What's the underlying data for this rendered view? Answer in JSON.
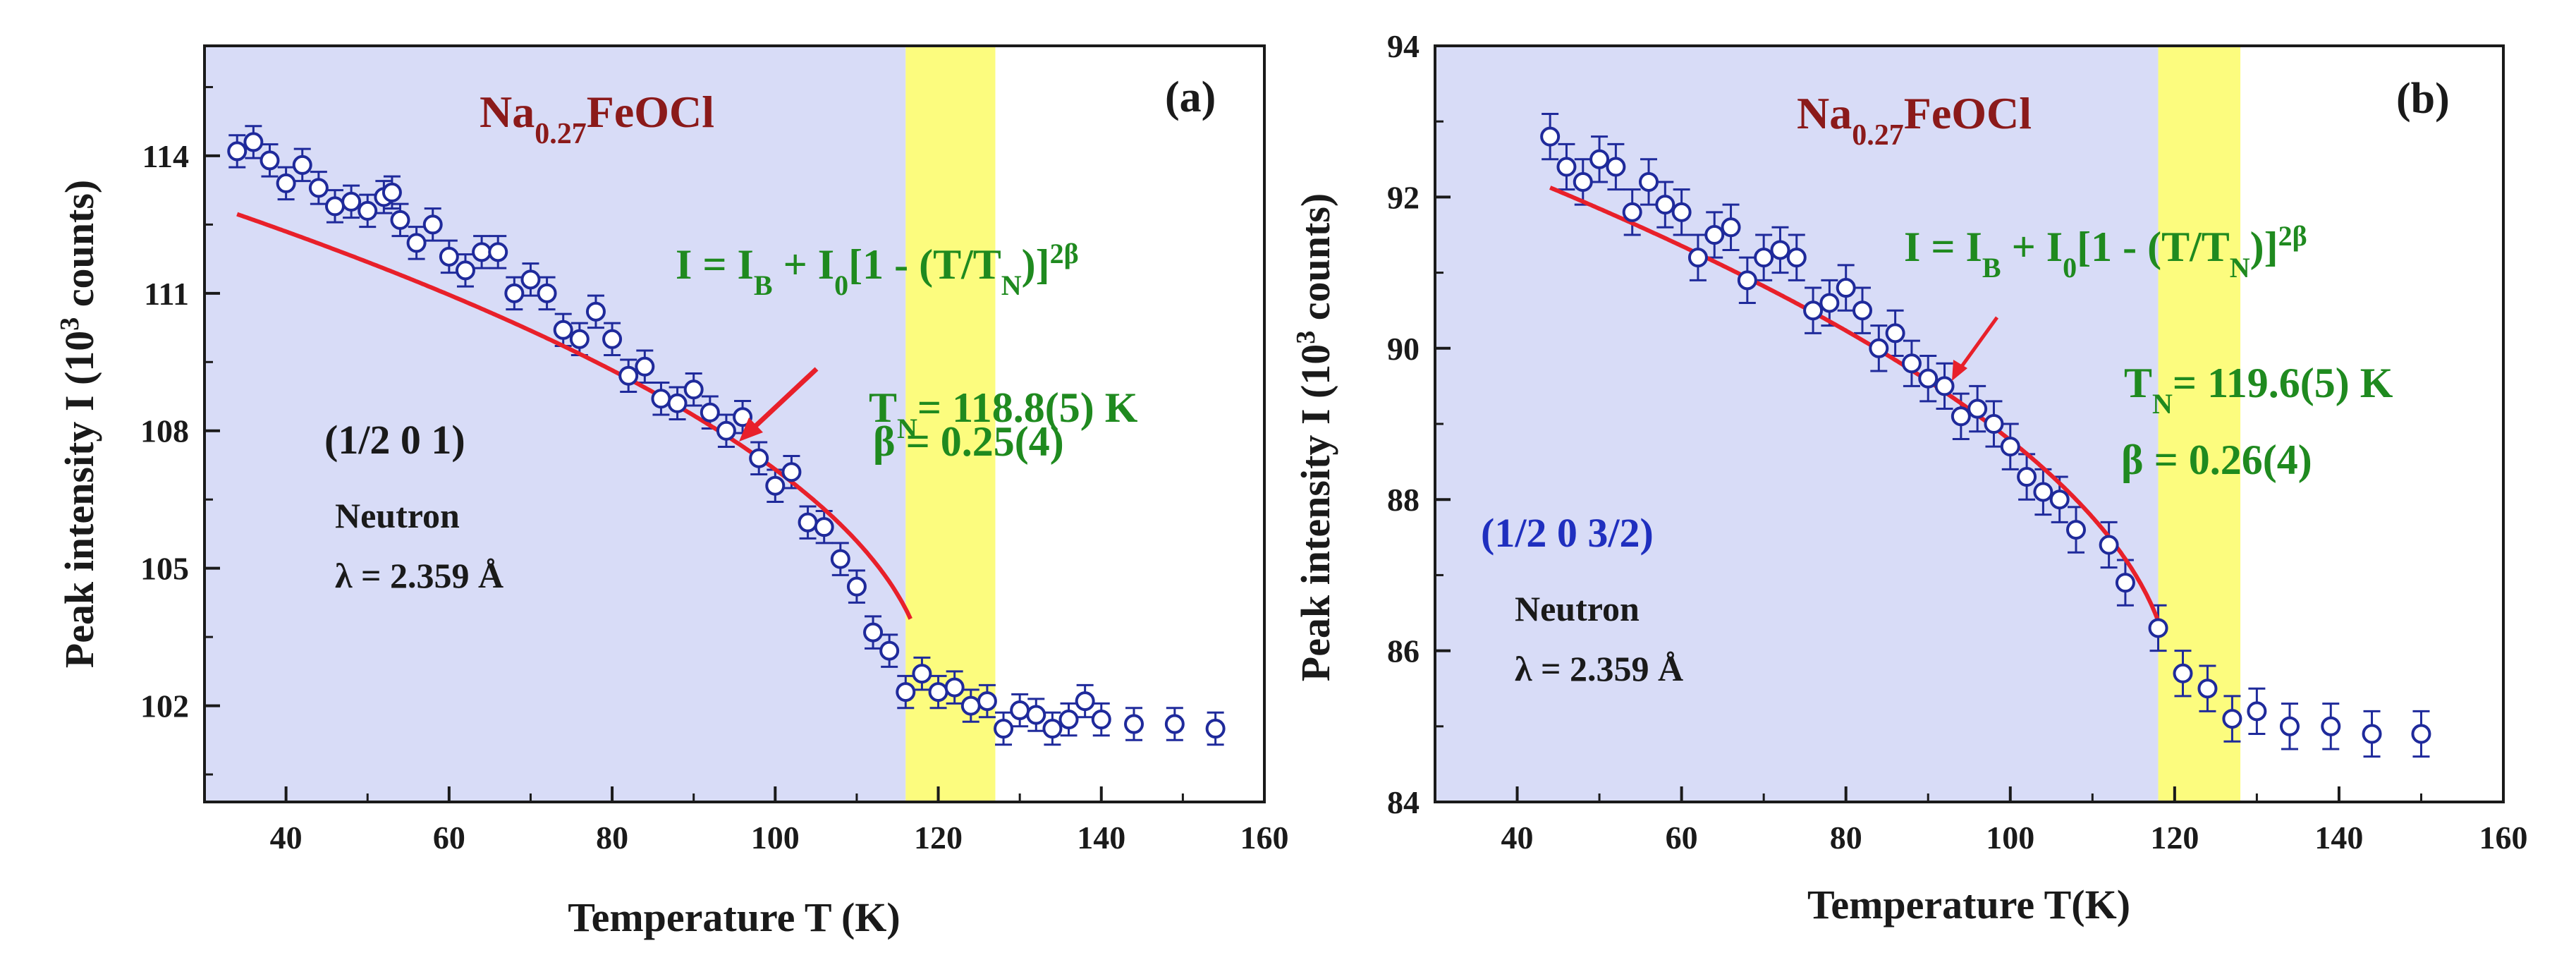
{
  "chart_data": [
    {
      "type": "scatter",
      "panel_label": "(a)",
      "compound": "Na0.27FeOCl",
      "compound_parts": {
        "base": "Na",
        "sub": "0.27",
        "rest": "FeOCl"
      },
      "xlabel": "Temperature T (K)",
      "ylabel_parts": {
        "pre": "Peak intensity I (10",
        "sup": "3",
        "post": " counts)"
      },
      "xlim": [
        30,
        160
      ],
      "ylim": [
        99.9,
        116.4
      ],
      "xticks": [
        40,
        60,
        80,
        100,
        120,
        140,
        160
      ],
      "yticks": [
        102,
        105,
        108,
        111,
        114
      ],
      "xtick_labels": [
        "40",
        "60",
        "80",
        "100",
        "120",
        "140",
        "160"
      ],
      "ytick_labels": [
        "102",
        "105",
        "108",
        "111",
        "114"
      ],
      "shaded_region_ordered": [
        30,
        116
      ],
      "shaded_region_transition": [
        116,
        127
      ],
      "colors": {
        "ordered_region": "#d8dcf7",
        "transition_region": "#fcfc7e",
        "markers": "#1f2a9b",
        "fit": "#e8202a"
      },
      "equation": {
        "p1": "I = I",
        "s1": "B",
        "p2": " + I",
        "s2": "0",
        "p3": "[1 - (T/T",
        "s3": "N",
        "p4": ")]",
        "sup": "2β"
      },
      "fit_params": {
        "tn_pre": "T",
        "tn_sub": "N",
        "tn_value": "= 118.8(5) K",
        "beta": "β = 0.25(4)"
      },
      "hkl": "(1/2 0 1)",
      "probe": "Neutron",
      "wavelength": "λ = 2.359 Å",
      "series": [
        {
          "points": [
            [
              34,
              114.1,
              0.35
            ],
            [
              36,
              114.3,
              0.35
            ],
            [
              38,
              113.9,
              0.35
            ],
            [
              40,
              113.4,
              0.35
            ],
            [
              42,
              113.8,
              0.35
            ],
            [
              44,
              113.3,
              0.35
            ],
            [
              46,
              112.9,
              0.35
            ],
            [
              48,
              113.0,
              0.35
            ],
            [
              50,
              112.8,
              0.35
            ],
            [
              52,
              113.1,
              0.35
            ],
            [
              53,
              113.2,
              0.35
            ],
            [
              54,
              112.6,
              0.35
            ],
            [
              56,
              112.1,
              0.35
            ],
            [
              58,
              112.5,
              0.35
            ],
            [
              60,
              111.8,
              0.35
            ],
            [
              62,
              111.5,
              0.35
            ],
            [
              64,
              111.9,
              0.35
            ],
            [
              66,
              111.9,
              0.35
            ],
            [
              68,
              111.0,
              0.35
            ],
            [
              70,
              111.3,
              0.35
            ],
            [
              72,
              111.0,
              0.35
            ],
            [
              74,
              110.2,
              0.35
            ],
            [
              76,
              110.0,
              0.35
            ],
            [
              78,
              110.6,
              0.35
            ],
            [
              80,
              110.0,
              0.35
            ],
            [
              82,
              109.2,
              0.35
            ],
            [
              84,
              109.4,
              0.35
            ],
            [
              86,
              108.7,
              0.35
            ],
            [
              88,
              108.6,
              0.35
            ],
            [
              90,
              108.9,
              0.35
            ],
            [
              92,
              108.4,
              0.35
            ],
            [
              94,
              108.0,
              0.35
            ],
            [
              96,
              108.3,
              0.35
            ],
            [
              98,
              107.4,
              0.35
            ],
            [
              100,
              106.8,
              0.35
            ],
            [
              102,
              107.1,
              0.35
            ],
            [
              104,
              106.0,
              0.35
            ],
            [
              106,
              105.9,
              0.35
            ],
            [
              108,
              105.2,
              0.35
            ],
            [
              110,
              104.6,
              0.35
            ],
            [
              112,
              103.6,
              0.35
            ],
            [
              114,
              103.2,
              0.35
            ],
            [
              116,
              102.3,
              0.35
            ],
            [
              118,
              102.7,
              0.35
            ],
            [
              120,
              102.3,
              0.35
            ],
            [
              122,
              102.4,
              0.35
            ],
            [
              124,
              102.0,
              0.35
            ],
            [
              126,
              102.1,
              0.35
            ],
            [
              128,
              101.5,
              0.35
            ],
            [
              130,
              101.9,
              0.35
            ],
            [
              132,
              101.8,
              0.35
            ],
            [
              134,
              101.5,
              0.35
            ],
            [
              136,
              101.7,
              0.35
            ],
            [
              138,
              102.1,
              0.35
            ],
            [
              140,
              101.7,
              0.35
            ],
            [
              144,
              101.6,
              0.35
            ],
            [
              149,
              101.6,
              0.35
            ],
            [
              154,
              101.5,
              0.35
            ]
          ]
        }
      ],
      "fit_curve": {
        "IB": 102.2,
        "I0": 12.46,
        "TN": 118.8,
        "beta": 0.25,
        "T_start": 34,
        "T_end": 116.6
      }
    },
    {
      "type": "scatter",
      "panel_label": "(b)",
      "compound": "Na0.27FeOCl",
      "compound_parts": {
        "base": "Na",
        "sub": "0.27",
        "rest": "FeOCl"
      },
      "xlabel": "Temperature T(K)",
      "ylabel_parts": {
        "pre": "Peak intensity I (10",
        "sup": "3",
        "post": " counts)"
      },
      "xlim": [
        30,
        160
      ],
      "ylim": [
        84,
        94
      ],
      "xticks": [
        40,
        60,
        80,
        100,
        120,
        140,
        160
      ],
      "yticks": [
        84,
        86,
        88,
        90,
        92,
        94
      ],
      "xtick_labels": [
        "40",
        "60",
        "80",
        "100",
        "120",
        "140",
        "160"
      ],
      "ytick_labels": [
        "84",
        "86",
        "88",
        "90",
        "92",
        "94"
      ],
      "shaded_region_ordered": [
        30,
        118
      ],
      "shaded_region_transition": [
        118,
        128
      ],
      "colors": {
        "ordered_region": "#d8dcf7",
        "transition_region": "#fcfc7e",
        "markers": "#1f2a9b",
        "fit": "#e8202a"
      },
      "equation": {
        "p1": "I = I",
        "s1": "B",
        "p2": " + I",
        "s2": "0",
        "p3": "[1 - (T/T",
        "s3": "N",
        "p4": ")]",
        "sup": "2β"
      },
      "fit_params": {
        "tn_pre": "T",
        "tn_sub": "N",
        "tn_value": "= 119.6(5) K",
        "beta": "β = 0.26(4)"
      },
      "hkl": "(1/2 0 3/2)",
      "probe": "Neutron",
      "wavelength": "λ = 2.359 Å",
      "series": [
        {
          "points": [
            [
              44,
              92.8,
              0.3
            ],
            [
              46,
              92.4,
              0.3
            ],
            [
              48,
              92.2,
              0.3
            ],
            [
              50,
              92.5,
              0.3
            ],
            [
              52,
              92.4,
              0.3
            ],
            [
              54,
              91.8,
              0.3
            ],
            [
              56,
              92.2,
              0.3
            ],
            [
              58,
              91.9,
              0.3
            ],
            [
              60,
              91.8,
              0.3
            ],
            [
              62,
              91.2,
              0.3
            ],
            [
              64,
              91.5,
              0.3
            ],
            [
              66,
              91.6,
              0.3
            ],
            [
              68,
              90.9,
              0.3
            ],
            [
              70,
              91.2,
              0.3
            ],
            [
              72,
              91.3,
              0.3
            ],
            [
              74,
              91.2,
              0.3
            ],
            [
              76,
              90.5,
              0.3
            ],
            [
              78,
              90.6,
              0.3
            ],
            [
              80,
              90.8,
              0.3
            ],
            [
              82,
              90.5,
              0.3
            ],
            [
              84,
              90.0,
              0.3
            ],
            [
              86,
              90.2,
              0.3
            ],
            [
              88,
              89.8,
              0.3
            ],
            [
              90,
              89.6,
              0.3
            ],
            [
              92,
              89.5,
              0.3
            ],
            [
              94,
              89.1,
              0.3
            ],
            [
              96,
              89.2,
              0.3
            ],
            [
              98,
              89.0,
              0.3
            ],
            [
              100,
              88.7,
              0.3
            ],
            [
              102,
              88.3,
              0.3
            ],
            [
              104,
              88.1,
              0.3
            ],
            [
              106,
              88.0,
              0.3
            ],
            [
              108,
              87.6,
              0.3
            ],
            [
              112,
              87.4,
              0.3
            ],
            [
              114,
              86.9,
              0.3
            ],
            [
              118,
              86.3,
              0.3
            ],
            [
              121,
              85.7,
              0.3
            ],
            [
              124,
              85.5,
              0.3
            ],
            [
              127,
              85.1,
              0.3
            ],
            [
              130,
              85.2,
              0.3
            ],
            [
              134,
              85.0,
              0.3
            ],
            [
              139,
              85.0,
              0.3
            ],
            [
              144,
              84.9,
              0.3
            ],
            [
              150,
              84.9,
              0.3
            ]
          ]
        }
      ],
      "fit_curve": {
        "IB": 85.5,
        "I0": 8.41,
        "TN": 119.6,
        "beta": 0.26,
        "T_start": 44,
        "T_end": 118.5
      }
    }
  ]
}
